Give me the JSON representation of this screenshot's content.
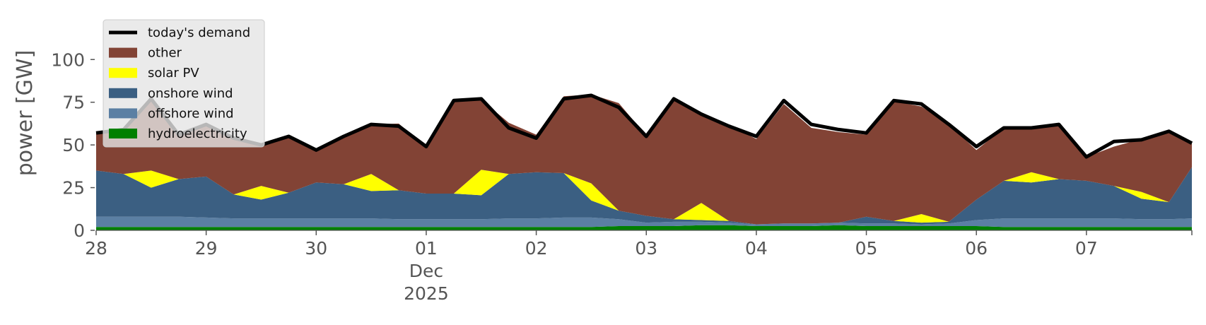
{
  "chart_data": {
    "type": "area",
    "stacked": true,
    "ylabel": "power [GW]",
    "xlabel": "",
    "ylim": [
      0,
      115
    ],
    "xlim": [
      "2025-11-28T00:00",
      "2025-12-07T23:00"
    ],
    "x_ticks": [
      "28",
      "29",
      "30",
      "01",
      "02",
      "03",
      "04",
      "05",
      "06",
      "07"
    ],
    "x_tick_dates": [
      "2025-11-28",
      "2025-11-29",
      "2025-11-30",
      "2025-12-01",
      "2025-12-02",
      "2025-12-03",
      "2025-12-04",
      "2025-12-05",
      "2025-12-06",
      "2025-12-07"
    ],
    "x_sublabels": [
      "Dec",
      "2025"
    ],
    "y_ticks": [
      0,
      25,
      50,
      75,
      100
    ],
    "grid": false,
    "legend_position": "top-left",
    "x": [
      "2025-11-28T00:00",
      "2025-11-28T06:00",
      "2025-11-28T12:00",
      "2025-11-28T18:00",
      "2025-11-29T00:00",
      "2025-11-29T06:00",
      "2025-11-29T12:00",
      "2025-11-29T18:00",
      "2025-11-30T00:00",
      "2025-11-30T06:00",
      "2025-11-30T12:00",
      "2025-11-30T18:00",
      "2025-12-01T00:00",
      "2025-12-01T06:00",
      "2025-12-01T12:00",
      "2025-12-01T18:00",
      "2025-12-02T00:00",
      "2025-12-02T06:00",
      "2025-12-02T12:00",
      "2025-12-02T18:00",
      "2025-12-03T00:00",
      "2025-12-03T06:00",
      "2025-12-03T12:00",
      "2025-12-03T18:00",
      "2025-12-04T00:00",
      "2025-12-04T06:00",
      "2025-12-04T12:00",
      "2025-12-04T18:00",
      "2025-12-05T00:00",
      "2025-12-05T06:00",
      "2025-12-05T12:00",
      "2025-12-05T18:00",
      "2025-12-06T00:00",
      "2025-12-06T06:00",
      "2025-12-06T12:00",
      "2025-12-06T18:00",
      "2025-12-07T00:00",
      "2025-12-07T06:00",
      "2025-12-07T12:00",
      "2025-12-07T18:00",
      "2025-12-07T23:00"
    ],
    "series": [
      {
        "name": "hydroelectricity",
        "color": "#008000",
        "values": [
          2,
          2,
          2,
          2,
          2,
          2,
          2,
          2,
          2,
          2,
          2,
          2,
          2,
          2,
          2,
          2,
          2,
          2,
          2,
          2.5,
          2.5,
          2.5,
          3,
          3,
          2.5,
          2.5,
          2.5,
          3,
          2.5,
          2.5,
          2.5,
          2.5,
          2.5,
          2,
          2,
          2,
          2,
          2,
          2,
          2,
          2
        ]
      },
      {
        "name": "offshore wind",
        "color": "#5b7fa3",
        "values": [
          6,
          6,
          6,
          6,
          5.5,
          5,
          5,
          5,
          5,
          5,
          5,
          4.5,
          4.5,
          4.5,
          4.5,
          5,
          5,
          5.5,
          5.5,
          4,
          2,
          2.5,
          2,
          1.5,
          1,
          1.5,
          1.5,
          1.5,
          1.5,
          1.5,
          1,
          1.5,
          3.5,
          5,
          5,
          5,
          5,
          5,
          4.5,
          4.5,
          5
        ]
      },
      {
        "name": "onshore wind",
        "color": "#3b5f82",
        "values": [
          27,
          25,
          17,
          22,
          24,
          14,
          11,
          15,
          21,
          20,
          16,
          17,
          15,
          15,
          14,
          26,
          27,
          26,
          10,
          5,
          4,
          1.5,
          1,
          1,
          0,
          0,
          0,
          0,
          4,
          1.5,
          1,
          1,
          12,
          22,
          21,
          23,
          22,
          19,
          12,
          10,
          30
        ]
      },
      {
        "name": "solar PV",
        "color": "#ffff00",
        "values": [
          0,
          0,
          10,
          0,
          0,
          0,
          8,
          0,
          0,
          0,
          10,
          0,
          0,
          0,
          15,
          0,
          0,
          0,
          10,
          0,
          0,
          0,
          10,
          0,
          0,
          0,
          0,
          0,
          0,
          0,
          5,
          0,
          0,
          0,
          6,
          0,
          0,
          0,
          4,
          0,
          0
        ]
      },
      {
        "name": "other",
        "color": "#824335",
        "values": [
          22,
          26,
          42,
          26,
          31,
          33,
          24,
          33,
          19,
          28,
          29,
          39,
          27,
          54,
          41,
          30,
          22,
          45,
          52,
          63,
          47,
          70,
          52,
          56,
          50,
          70,
          56,
          53,
          48,
          70,
          63,
          57,
          29,
          31,
          25,
          32,
          14,
          23,
          31,
          41,
          14
        ]
      }
    ],
    "demand": {
      "name": "today's demand",
      "color": "#000000",
      "values": [
        57,
        59,
        77,
        56,
        62,
        54,
        50,
        55,
        47,
        55,
        62,
        61,
        49,
        76,
        77,
        60,
        54,
        77,
        79,
        72,
        55,
        77,
        68,
        61,
        55,
        76,
        62,
        59,
        57,
        76,
        74,
        62,
        49,
        60,
        60,
        62,
        43,
        52,
        53,
        58,
        51
      ]
    },
    "legend_order": [
      "today's demand",
      "other",
      "solar PV",
      "onshore wind",
      "offshore wind",
      "hydroelectricity"
    ]
  }
}
